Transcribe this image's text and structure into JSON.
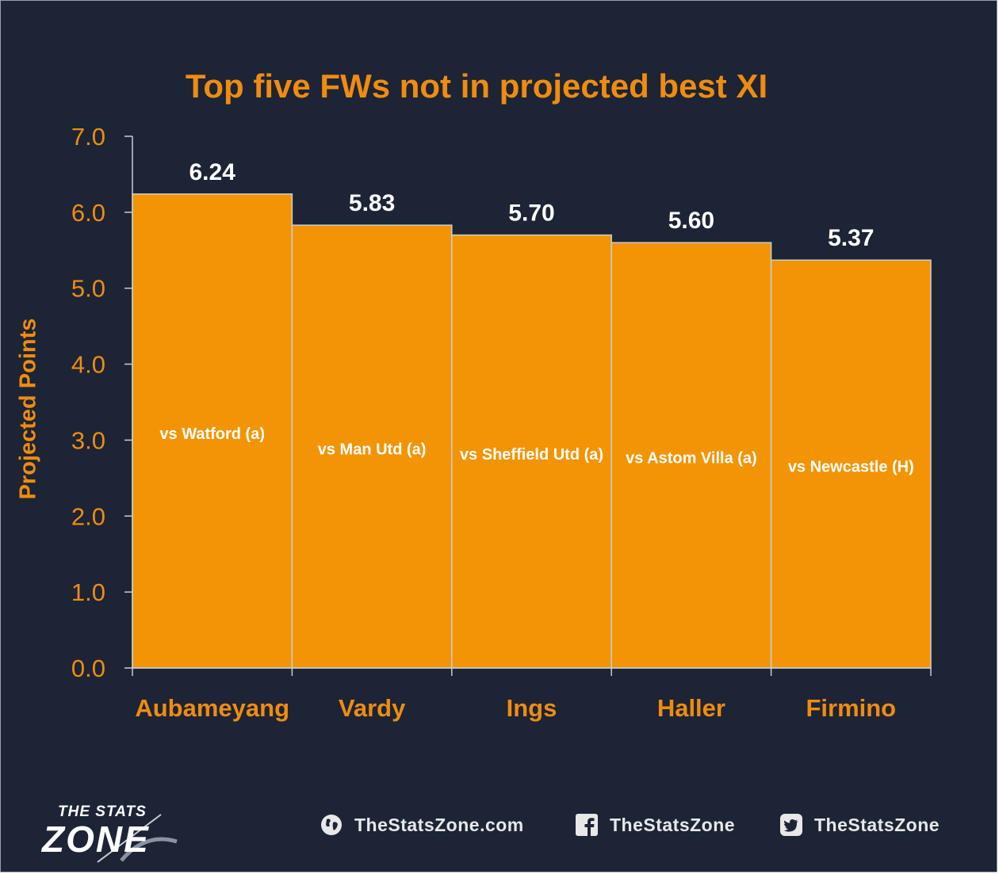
{
  "chart_data": {
    "type": "bar",
    "title": "Top five FWs not in projected best XI",
    "ylabel": "Projected Points",
    "ylim": [
      0,
      7
    ],
    "yticks": [
      "0.0",
      "1.0",
      "2.0",
      "3.0",
      "4.0",
      "5.0",
      "6.0",
      "7.0"
    ],
    "categories": [
      "Aubameyang",
      "Vardy",
      "Ings",
      "Haller",
      "Firmino"
    ],
    "values": [
      6.24,
      5.83,
      5.7,
      5.6,
      5.37
    ],
    "value_labels": [
      "6.24",
      "5.83",
      "5.70",
      "5.60",
      "5.37"
    ],
    "bar_annotations": [
      "vs Watford (a)",
      "vs Man Utd (a)",
      "vs Sheffield Utd (a)",
      "vs Astom Villa (a)",
      "vs Newcastle (H)"
    ],
    "grid": false,
    "colors": {
      "bar": "#f29406",
      "bar_edge": "#c9cdd4",
      "accent": "#ef8c10",
      "background": "#1c2436",
      "value_label": "#ffffff"
    }
  },
  "footer": {
    "logo": {
      "line1": "THE STATS",
      "line2": "ZONE"
    },
    "website": {
      "icon": "globe-icon",
      "text": "TheStatsZone.com"
    },
    "facebook": {
      "icon": "facebook-icon",
      "text": "TheStatsZone"
    },
    "twitter": {
      "icon": "twitter-icon",
      "text": "TheStatsZone"
    }
  }
}
